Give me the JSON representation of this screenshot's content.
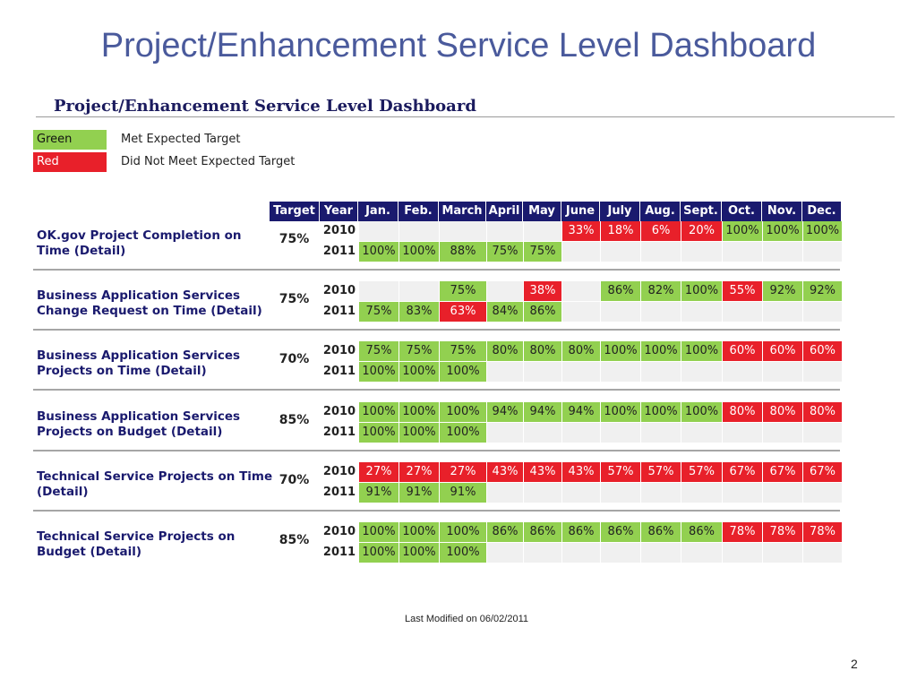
{
  "slide_title": "Project/Enhancement Service Level Dashboard",
  "sub_title": "Project/Enhancement Service Level Dashboard",
  "legend": [
    {
      "swatch": "Green",
      "description": "Met Expected Target",
      "color": "#92d050"
    },
    {
      "swatch": "Red",
      "description": "Did Not Meet Expected Target",
      "color": "#e8202a"
    }
  ],
  "table": {
    "headers": [
      "Target",
      "Year",
      "Jan.",
      "Feb.",
      "March",
      "April",
      "May",
      "June",
      "July",
      "Aug.",
      "Sept.",
      "Oct.",
      "Nov.",
      "Dec."
    ],
    "metrics": [
      {
        "name": "OK.gov Project Completion on Time (Detail)",
        "target": "75%",
        "rows": [
          {
            "year": "2010",
            "values": [
              "",
              "",
              "",
              "",
              "",
              "33%",
              "18%",
              "6%",
              "20%",
              "100%",
              "100%",
              "100%"
            ],
            "status": [
              "",
              "",
              "",
              "",
              "",
              "red",
              "red",
              "red",
              "red",
              "green",
              "green",
              "green"
            ]
          },
          {
            "year": "2011",
            "values": [
              "100%",
              "100%",
              "88%",
              "75%",
              "75%",
              "",
              "",
              "",
              "",
              "",
              "",
              ""
            ],
            "status": [
              "green",
              "green",
              "green",
              "green",
              "green",
              "",
              "",
              "",
              "",
              "",
              "",
              ""
            ]
          }
        ]
      },
      {
        "name": "Business Application Services Change Request on Time (Detail)",
        "target": "75%",
        "rows": [
          {
            "year": "2010",
            "values": [
              "",
              "",
              "75%",
              "",
              "38%",
              "",
              "86%",
              "82%",
              "100%",
              "55%",
              "92%",
              "92%"
            ],
            "status": [
              "",
              "",
              "green",
              "",
              "red",
              "",
              "green",
              "green",
              "green",
              "red",
              "green",
              "green"
            ]
          },
          {
            "year": "2011",
            "values": [
              "75%",
              "83%",
              "63%",
              "84%",
              "86%",
              "",
              "",
              "",
              "",
              "",
              "",
              ""
            ],
            "status": [
              "green",
              "green",
              "red",
              "green",
              "green",
              "",
              "",
              "",
              "",
              "",
              "",
              ""
            ]
          }
        ]
      },
      {
        "name": "Business Application Services Projects on Time (Detail)",
        "target": "70%",
        "rows": [
          {
            "year": "2010",
            "values": [
              "75%",
              "75%",
              "75%",
              "80%",
              "80%",
              "80%",
              "100%",
              "100%",
              "100%",
              "60%",
              "60%",
              "60%"
            ],
            "status": [
              "green",
              "green",
              "green",
              "green",
              "green",
              "green",
              "green",
              "green",
              "green",
              "red",
              "red",
              "red"
            ]
          },
          {
            "year": "2011",
            "values": [
              "100%",
              "100%",
              "100%",
              "",
              "",
              "",
              "",
              "",
              "",
              "",
              "",
              ""
            ],
            "status": [
              "green",
              "green",
              "green",
              "",
              "",
              "",
              "",
              "",
              "",
              "",
              "",
              ""
            ]
          }
        ]
      },
      {
        "name": "Business Application Services Projects on Budget (Detail)",
        "target": "85%",
        "rows": [
          {
            "year": "2010",
            "values": [
              "100%",
              "100%",
              "100%",
              "94%",
              "94%",
              "94%",
              "100%",
              "100%",
              "100%",
              "80%",
              "80%",
              "80%"
            ],
            "status": [
              "green",
              "green",
              "green",
              "green",
              "green",
              "green",
              "green",
              "green",
              "green",
              "red",
              "red",
              "red"
            ]
          },
          {
            "year": "2011",
            "values": [
              "100%",
              "100%",
              "100%",
              "",
              "",
              "",
              "",
              "",
              "",
              "",
              "",
              ""
            ],
            "status": [
              "green",
              "green",
              "green",
              "",
              "",
              "",
              "",
              "",
              "",
              "",
              "",
              ""
            ]
          }
        ]
      },
      {
        "name": "Technical Service Projects on Time (Detail)",
        "target": "70%",
        "rows": [
          {
            "year": "2010",
            "values": [
              "27%",
              "27%",
              "27%",
              "43%",
              "43%",
              "43%",
              "57%",
              "57%",
              "57%",
              "67%",
              "67%",
              "67%"
            ],
            "status": [
              "red",
              "red",
              "red",
              "red",
              "red",
              "red",
              "red",
              "red",
              "red",
              "red",
              "red",
              "red"
            ]
          },
          {
            "year": "2011",
            "values": [
              "91%",
              "91%",
              "91%",
              "",
              "",
              "",
              "",
              "",
              "",
              "",
              "",
              ""
            ],
            "status": [
              "green",
              "green",
              "green",
              "",
              "",
              "",
              "",
              "",
              "",
              "",
              "",
              ""
            ]
          }
        ]
      },
      {
        "name": "Technical Service Projects on Budget (Detail)",
        "target": "85%",
        "rows": [
          {
            "year": "2010",
            "values": [
              "100%",
              "100%",
              "100%",
              "86%",
              "86%",
              "86%",
              "86%",
              "86%",
              "86%",
              "78%",
              "78%",
              "78%"
            ],
            "status": [
              "green",
              "green",
              "green",
              "green",
              "green",
              "green",
              "green",
              "green",
              "green",
              "red",
              "red",
              "red"
            ]
          },
          {
            "year": "2011",
            "values": [
              "100%",
              "100%",
              "100%",
              "",
              "",
              "",
              "",
              "",
              "",
              "",
              "",
              ""
            ],
            "status": [
              "green",
              "green",
              "green",
              "",
              "",
              "",
              "",
              "",
              "",
              "",
              "",
              ""
            ]
          }
        ]
      }
    ]
  },
  "footer": "Last Modified on 06/02/2011",
  "page_number": "2"
}
